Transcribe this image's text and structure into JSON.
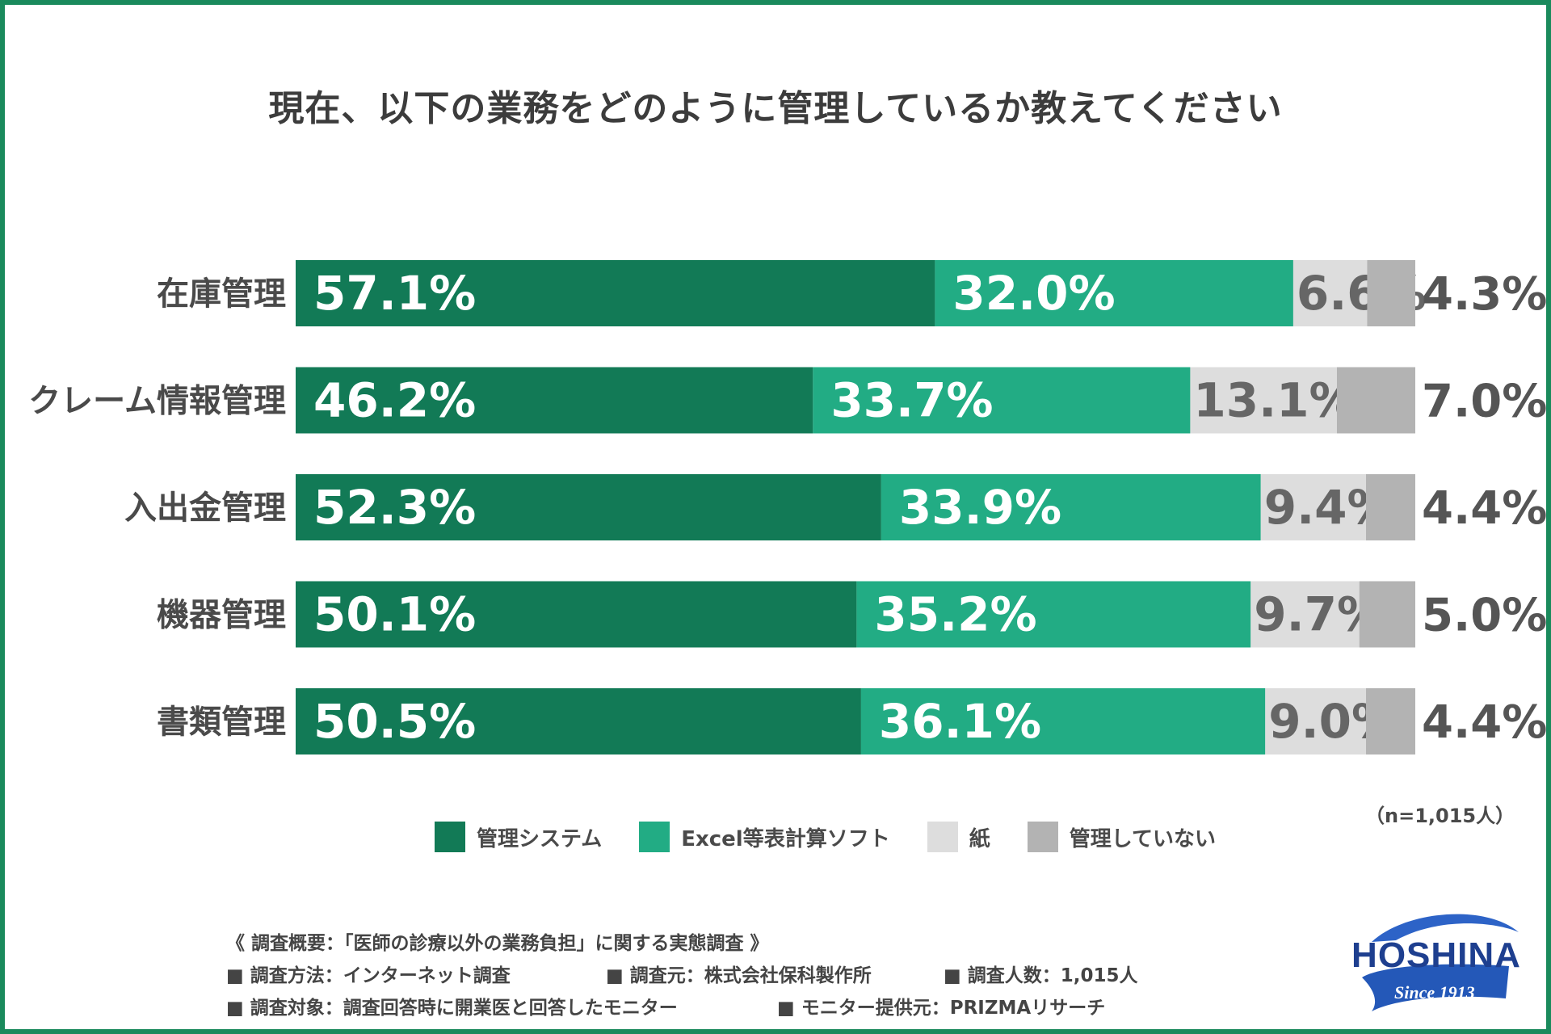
{
  "colors": {
    "frame": "#1a8a5c",
    "system": "#127a56",
    "excel": "#22ac84",
    "paper": "#dddddd",
    "none": "#b3b3b3",
    "label_dark_bg": "#ffffff",
    "label_light_bg": "#666666"
  },
  "chart_data": {
    "type": "bar",
    "orientation": "horizontal",
    "stacked": true,
    "percent": true,
    "title": "現在、以下の業務をどのように管理しているか教えてください",
    "categories": [
      "在庫管理",
      "クレーム情報管理",
      "入出金管理",
      "機器管理",
      "書類管理"
    ],
    "series": [
      {
        "name": "管理システム",
        "values": [
          57.1,
          46.2,
          52.3,
          50.1,
          50.5
        ],
        "labels": [
          "57.1%",
          "46.2%",
          "52.3%",
          "50.1%",
          "50.5%"
        ]
      },
      {
        "name": "Excel等表計算ソフト",
        "values": [
          32.0,
          33.7,
          33.9,
          35.2,
          36.1
        ],
        "labels": [
          "32.0%",
          "33.7%",
          "33.9%",
          "35.2%",
          "36.1%"
        ]
      },
      {
        "name": "紙",
        "values": [
          6.6,
          13.1,
          9.4,
          9.7,
          9.0
        ],
        "labels": [
          "6.6%",
          "13.1%",
          "9.4%",
          "9.7%",
          "9.0%"
        ]
      },
      {
        "name": "管理していない",
        "values": [
          4.3,
          7.0,
          4.4,
          5.0,
          4.4
        ],
        "labels": [
          "4.3%",
          "7.0%",
          "4.4%",
          "5.0%",
          "4.4%"
        ]
      }
    ],
    "xlim": [
      0,
      100
    ],
    "legend_position": "bottom",
    "note": "（n=1,015人）"
  },
  "footnotes": {
    "heading": "《 調査概要：「医師の診療以外の業務負担」に関する実態調査 》",
    "method": "■ 調査方法：インターネット調査",
    "organizer": "■ 調査元：株式会社保科製作所",
    "count": "■ 調査人数：1,015人",
    "target": "■ 調査対象：調査回答時に開業医と回答したモニター",
    "provider": "■ モニター提供元：PRIZMAリサーチ"
  },
  "logo": {
    "name": "HOSHINA",
    "since": "Since 1913"
  }
}
